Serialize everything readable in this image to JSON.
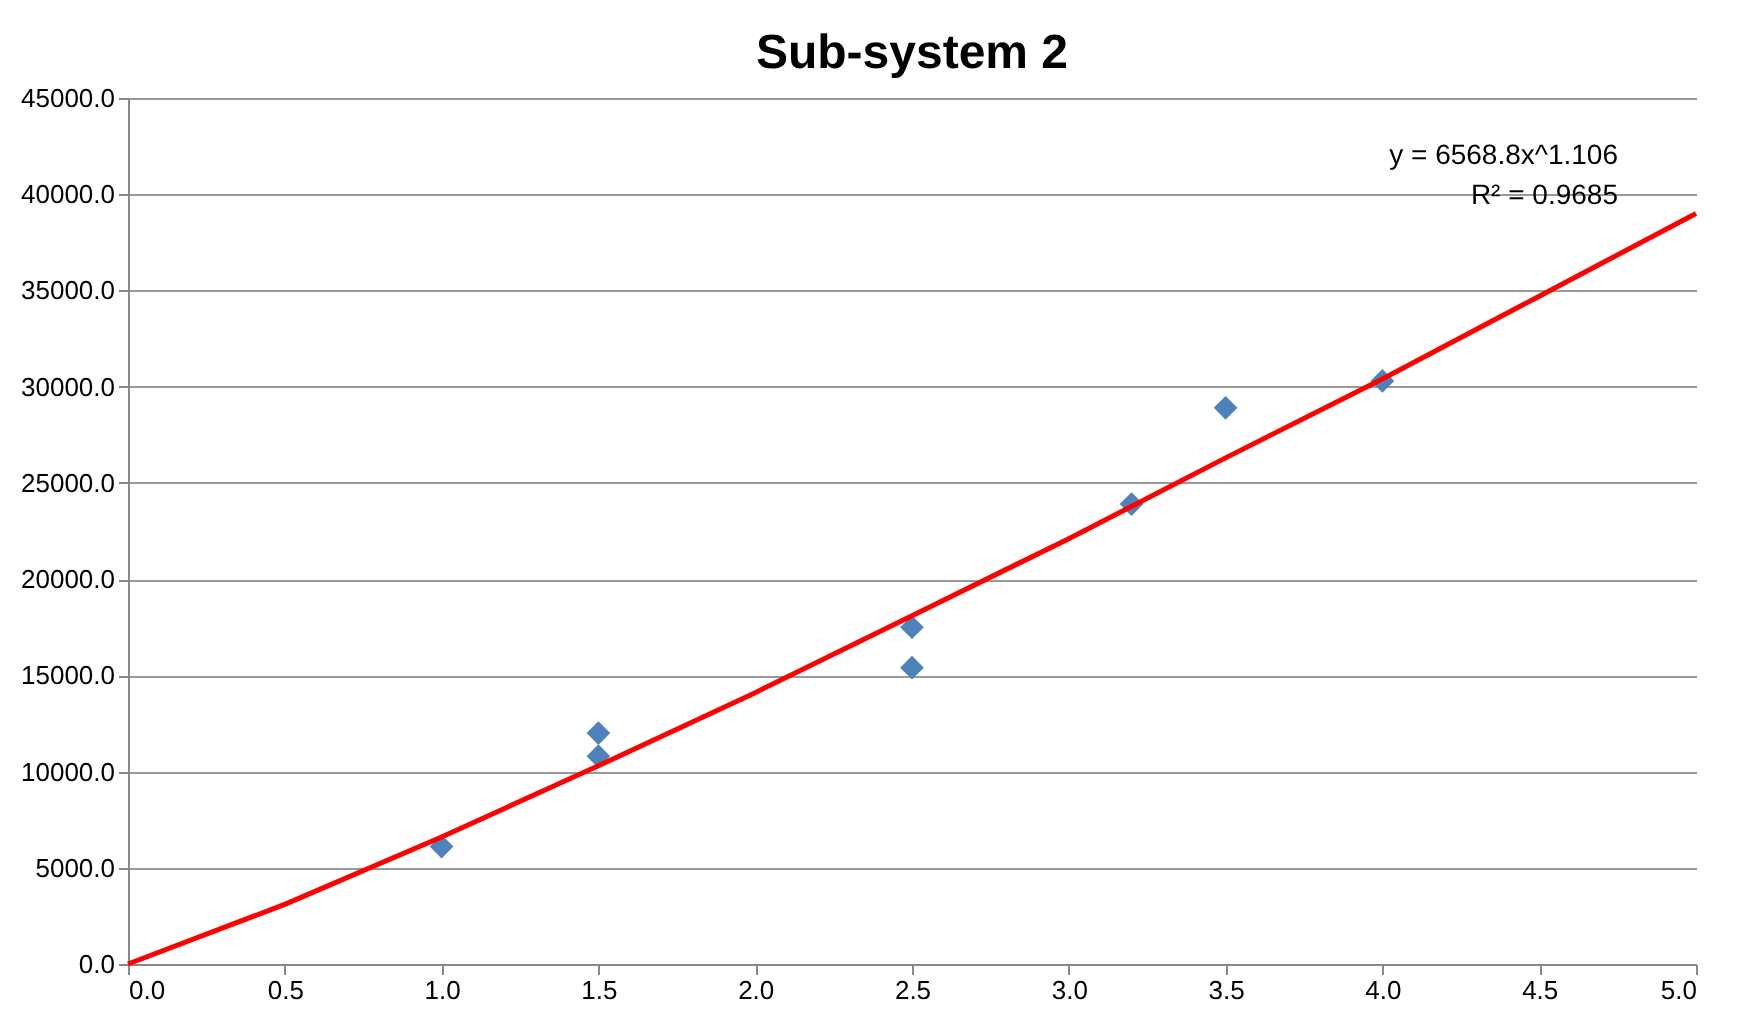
{
  "chart_data": {
    "type": "scatter",
    "title": "Sub-system 2",
    "series": [
      {
        "color": "#4f81bd",
        "marker": "diamond",
        "x": [
          1.0,
          1.5,
          1.5,
          2.5,
          2.5,
          3.2,
          3.5,
          4.0
        ],
        "values": [
          6100,
          12000,
          10800,
          17500,
          15400,
          23900,
          28900,
          30300
        ]
      },
      {
        "type": "line",
        "color": "#ff0000",
        "marker": "none",
        "line_style": "solid",
        "x": [
          0,
          0.5,
          1,
          1.5,
          2,
          2.5,
          3,
          3.5,
          4,
          4.5,
          5
        ],
        "values": [
          0,
          3100,
          6600,
          10300,
          14100,
          18100,
          22100,
          26300,
          30400,
          34700,
          39000
        ]
      }
    ],
    "xlim": [
      0,
      5
    ],
    "xticks": [
      {
        "value": 0,
        "label": "0.0"
      },
      {
        "value": 0.5,
        "label": "0.5"
      },
      {
        "value": 1,
        "label": "1.0"
      },
      {
        "value": 1.5,
        "label": "1.5"
      },
      {
        "value": 2,
        "label": "2.0"
      },
      {
        "value": 2.5,
        "label": "2.5"
      },
      {
        "value": 3,
        "label": "3.0"
      },
      {
        "value": 3.5,
        "label": "3.5"
      },
      {
        "value": 4,
        "label": "4.0"
      },
      {
        "value": 4.5,
        "label": "4.5"
      },
      {
        "value": 5,
        "label": "5.0"
      }
    ],
    "ylim": [
      0,
      45000
    ],
    "yticks": [
      {
        "value": 0,
        "label": "0.0"
      },
      {
        "value": 5000,
        "label": "5000.0"
      },
      {
        "value": 10000,
        "label": "10000.0"
      },
      {
        "value": 15000,
        "label": "15000.0"
      },
      {
        "value": 20000,
        "label": "20000.0"
      },
      {
        "value": 25000,
        "label": "25000.0"
      },
      {
        "value": 30000,
        "label": "30000.0"
      },
      {
        "value": 35000,
        "label": "35000.0"
      },
      {
        "value": 40000,
        "label": "40000.0"
      },
      {
        "value": 45000,
        "label": "45000.0"
      }
    ],
    "grid": "y",
    "annotations": [
      "y = 6568.8x^1.106",
      "R² = 0.9685"
    ]
  }
}
